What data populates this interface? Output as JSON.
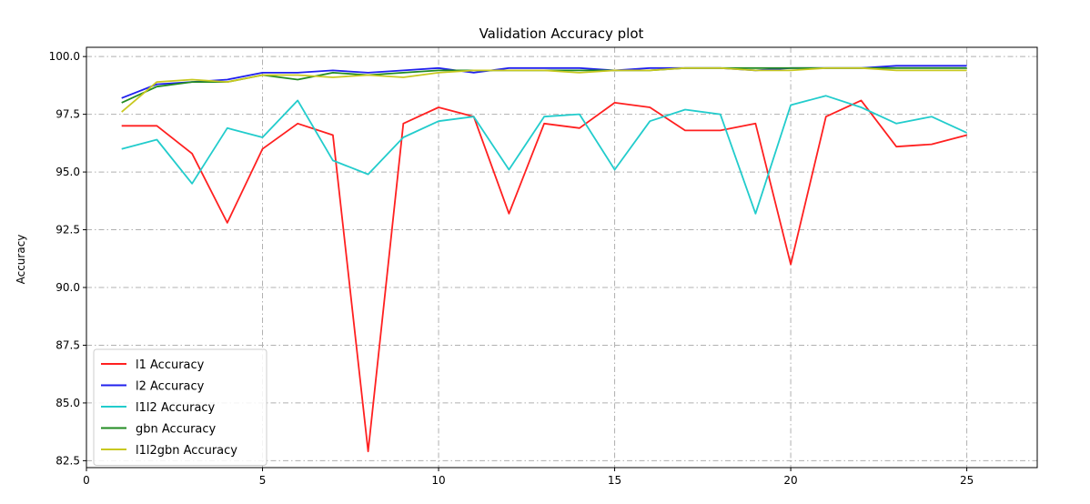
{
  "chart_data": {
    "type": "line",
    "title": "Validation Accuracy plot",
    "xlabel": "",
    "ylabel": "Accuracy",
    "xlim": [
      0,
      27
    ],
    "ylim": [
      82.2,
      100.4
    ],
    "xticks": [
      0,
      5,
      10,
      15,
      20,
      25
    ],
    "yticks": [
      82.5,
      85.0,
      87.5,
      90.0,
      92.5,
      95.0,
      97.5,
      100.0
    ],
    "grid": true,
    "legend_position": "lower-left",
    "x": [
      1,
      2,
      3,
      4,
      5,
      6,
      7,
      8,
      9,
      10,
      11,
      12,
      13,
      14,
      15,
      16,
      17,
      18,
      19,
      20,
      21,
      22,
      23,
      24,
      25
    ],
    "series": [
      {
        "name": "l1 Accuracy",
        "color": "#ff2020",
        "values": [
          97.0,
          97.0,
          95.8,
          92.8,
          96.0,
          97.1,
          96.6,
          82.9,
          97.1,
          97.8,
          97.4,
          93.2,
          97.1,
          96.9,
          98.0,
          97.8,
          96.8,
          96.8,
          97.1,
          91.0,
          97.4,
          98.1,
          96.1,
          96.2,
          96.6
        ]
      },
      {
        "name": "l2 Accuracy",
        "color": "#2020ee",
        "values": [
          98.2,
          98.8,
          98.9,
          99.0,
          99.3,
          99.3,
          99.4,
          99.3,
          99.4,
          99.5,
          99.3,
          99.5,
          99.5,
          99.5,
          99.4,
          99.5,
          99.5,
          99.5,
          99.4,
          99.5,
          99.5,
          99.5,
          99.6,
          99.6,
          99.6
        ]
      },
      {
        "name": "l1l2 Accuracy",
        "color": "#22cccc",
        "values": [
          96.0,
          96.4,
          94.5,
          96.9,
          96.5,
          98.1,
          95.5,
          94.9,
          96.5,
          97.2,
          97.4,
          95.1,
          97.4,
          97.5,
          95.1,
          97.2,
          97.7,
          97.5,
          93.2,
          97.9,
          98.3,
          97.8,
          97.1,
          97.4,
          96.7
        ]
      },
      {
        "name": "gbn Accuracy",
        "color": "#228b22",
        "values": [
          98.0,
          98.7,
          98.9,
          98.9,
          99.2,
          99.0,
          99.3,
          99.2,
          99.3,
          99.4,
          99.4,
          99.4,
          99.4,
          99.4,
          99.4,
          99.4,
          99.5,
          99.5,
          99.5,
          99.5,
          99.5,
          99.5,
          99.5,
          99.5,
          99.5
        ]
      },
      {
        "name": "l1l2gbn Accuracy",
        "color": "#c8c820",
        "values": [
          97.6,
          98.9,
          99.0,
          98.9,
          99.2,
          99.2,
          99.1,
          99.2,
          99.1,
          99.3,
          99.4,
          99.4,
          99.4,
          99.3,
          99.4,
          99.4,
          99.5,
          99.5,
          99.4,
          99.4,
          99.5,
          99.5,
          99.4,
          99.4,
          99.4
        ]
      }
    ]
  }
}
